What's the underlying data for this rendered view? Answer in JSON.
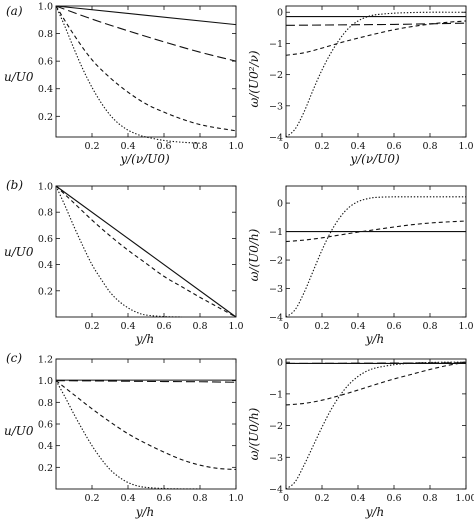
{
  "rows": [
    {
      "tag": "(a)",
      "left_xlabel": "y/(ν/U0)",
      "right_xlabel": "y/(ν/U0)",
      "left_ylabel": "u/U0",
      "right_ylabel": "ω/(U0²/ν)"
    },
    {
      "tag": "(b)",
      "left_xlabel": "y/h",
      "right_xlabel": "y/h",
      "left_ylabel": "u/U0",
      "right_ylabel": "ω/(U0/h)"
    },
    {
      "tag": "(c)",
      "left_xlabel": "y/h",
      "right_xlabel": "y/h",
      "left_ylabel": "u/U0",
      "right_ylabel": "ω/(U0/h)"
    }
  ],
  "chart_data": [
    {
      "id": "a-left",
      "type": "line",
      "xlim": [
        0,
        1
      ],
      "ylim": [
        0.05,
        1.0
      ],
      "xticks": [
        "0.2",
        "0.4",
        "0.6",
        "0.8",
        "1.0"
      ],
      "yticks": [
        "0.2",
        "0.4",
        "0.6",
        "0.8",
        "1.0"
      ],
      "series": [
        {
          "style": "solid",
          "x": [
            0,
            1
          ],
          "y": [
            1.0,
            0.865
          ]
        },
        {
          "style": "longdash",
          "x": [
            0,
            0.2,
            0.4,
            0.6,
            0.8,
            1.0
          ],
          "y": [
            1.0,
            0.905,
            0.82,
            0.74,
            0.665,
            0.6
          ]
        },
        {
          "style": "dashed",
          "x": [
            0,
            0.1,
            0.2,
            0.3,
            0.4,
            0.5,
            0.6,
            0.7,
            0.8,
            0.9,
            1.0
          ],
          "y": [
            1.0,
            0.79,
            0.61,
            0.48,
            0.375,
            0.29,
            0.23,
            0.18,
            0.14,
            0.115,
            0.095
          ]
        },
        {
          "style": "dotted",
          "x": [
            0,
            0.05,
            0.1,
            0.15,
            0.2,
            0.25,
            0.3,
            0.35,
            0.4,
            0.45,
            0.5,
            0.6,
            0.7,
            0.8
          ],
          "y": [
            1.0,
            0.85,
            0.69,
            0.54,
            0.41,
            0.3,
            0.21,
            0.145,
            0.1,
            0.07,
            0.05,
            0.025,
            0.012,
            0.005
          ]
        }
      ]
    },
    {
      "id": "a-right",
      "type": "line",
      "xlim": [
        0,
        1
      ],
      "ylim": [
        -4,
        0.2
      ],
      "xticks": [
        "0",
        "0.2",
        "0.4",
        "0.6",
        "0.8",
        "1.0"
      ],
      "yticks": [
        "−4",
        "−3",
        "−2",
        "−1",
        "0"
      ],
      "series": [
        {
          "style": "solid",
          "x": [
            0,
            1
          ],
          "y": [
            -0.14,
            -0.14
          ]
        },
        {
          "style": "longdash",
          "x": [
            0,
            0.2,
            0.4,
            0.6,
            0.8,
            1.0
          ],
          "y": [
            -0.42,
            -0.41,
            -0.4,
            -0.39,
            -0.37,
            -0.35
          ]
        },
        {
          "style": "dashed",
          "x": [
            0,
            0.1,
            0.2,
            0.3,
            0.4,
            0.5,
            0.6,
            0.7,
            0.8,
            0.9,
            1.0
          ],
          "y": [
            -1.38,
            -1.3,
            -1.15,
            -0.98,
            -0.83,
            -0.69,
            -0.56,
            -0.46,
            -0.38,
            -0.32,
            -0.28
          ]
        },
        {
          "style": "dotted",
          "x": [
            0,
            0.05,
            0.1,
            0.15,
            0.2,
            0.25,
            0.3,
            0.35,
            0.4,
            0.45,
            0.5,
            0.6,
            0.7,
            0.8,
            0.9,
            1.0
          ],
          "y": [
            -4.0,
            -3.75,
            -3.2,
            -2.5,
            -1.85,
            -1.3,
            -0.85,
            -0.5,
            -0.28,
            -0.15,
            -0.08,
            -0.03,
            -0.01,
            0.0,
            0.0,
            0.0
          ]
        }
      ]
    },
    {
      "id": "b-left",
      "type": "line",
      "xlim": [
        0,
        1
      ],
      "ylim": [
        0,
        1.0
      ],
      "xticks": [
        "0.2",
        "0.4",
        "0.6",
        "0.8",
        "1.0"
      ],
      "yticks": [
        "0.2",
        "0.4",
        "0.6",
        "0.8",
        "1.0"
      ],
      "series": [
        {
          "style": "solid",
          "x": [
            0,
            1
          ],
          "y": [
            1.0,
            0.0
          ]
        },
        {
          "style": "dashed",
          "x": [
            0,
            0.1,
            0.2,
            0.3,
            0.4,
            0.5,
            0.6,
            0.7,
            0.8,
            0.9,
            1.0
          ],
          "y": [
            1.0,
            0.87,
            0.74,
            0.62,
            0.51,
            0.41,
            0.31,
            0.23,
            0.15,
            0.075,
            0.0
          ]
        },
        {
          "style": "dotted",
          "x": [
            0,
            0.05,
            0.1,
            0.15,
            0.2,
            0.25,
            0.3,
            0.35,
            0.4,
            0.45,
            0.5,
            0.6,
            0.7
          ],
          "y": [
            1.0,
            0.85,
            0.69,
            0.54,
            0.4,
            0.29,
            0.19,
            0.12,
            0.07,
            0.035,
            0.015,
            0.003,
            0.0
          ]
        }
      ]
    },
    {
      "id": "b-right",
      "type": "line",
      "xlim": [
        0,
        1
      ],
      "ylim": [
        -4,
        0.6
      ],
      "xticks": [
        "0",
        "0.2",
        "0.4",
        "0.6",
        "0.8",
        "1.0"
      ],
      "yticks": [
        "−4",
        "−3",
        "−2",
        "−1",
        "0"
      ],
      "series": [
        {
          "style": "solid",
          "x": [
            0,
            1
          ],
          "y": [
            -1.0,
            -1.0
          ]
        },
        {
          "style": "dashed",
          "x": [
            0,
            0.1,
            0.2,
            0.3,
            0.4,
            0.5,
            0.6,
            0.7,
            0.8,
            0.9,
            1.0
          ],
          "y": [
            -1.35,
            -1.3,
            -1.22,
            -1.12,
            -1.02,
            -0.93,
            -0.84,
            -0.76,
            -0.7,
            -0.66,
            -0.63
          ]
        },
        {
          "style": "dotted",
          "x": [
            0,
            0.05,
            0.1,
            0.15,
            0.2,
            0.25,
            0.3,
            0.35,
            0.4,
            0.45,
            0.5,
            0.6,
            0.7,
            0.8,
            0.9,
            1.0
          ],
          "y": [
            -4.0,
            -3.75,
            -3.15,
            -2.4,
            -1.65,
            -1.0,
            -0.5,
            -0.15,
            0.05,
            0.15,
            0.2,
            0.22,
            0.22,
            0.22,
            0.22,
            0.22
          ]
        }
      ]
    },
    {
      "id": "c-left",
      "type": "line",
      "xlim": [
        0,
        1
      ],
      "ylim": [
        0,
        1.2
      ],
      "xticks": [
        "0.2",
        "0.4",
        "0.6",
        "0.8",
        "1.0"
      ],
      "yticks": [
        "0.2",
        "0.4",
        "0.6",
        "0.8",
        "1.0",
        "1.2"
      ],
      "series": [
        {
          "style": "solid",
          "x": [
            0,
            1
          ],
          "y": [
            1.005,
            1.005
          ]
        },
        {
          "style": "longdash",
          "x": [
            0,
            0.2,
            0.4,
            0.6,
            0.8,
            1.0
          ],
          "y": [
            1.0,
            0.998,
            0.995,
            0.992,
            0.99,
            0.985
          ]
        },
        {
          "style": "dashed",
          "x": [
            0,
            0.1,
            0.2,
            0.3,
            0.4,
            0.5,
            0.6,
            0.7,
            0.8,
            0.9,
            1.0
          ],
          "y": [
            1.0,
            0.87,
            0.74,
            0.62,
            0.51,
            0.42,
            0.34,
            0.27,
            0.22,
            0.19,
            0.18
          ]
        },
        {
          "style": "dotted",
          "x": [
            0,
            0.05,
            0.1,
            0.15,
            0.2,
            0.25,
            0.3,
            0.35,
            0.4,
            0.45,
            0.5,
            0.6,
            0.7,
            0.8
          ],
          "y": [
            1.0,
            0.85,
            0.69,
            0.54,
            0.4,
            0.28,
            0.18,
            0.11,
            0.06,
            0.03,
            0.015,
            0.004,
            0.001,
            0.0
          ]
        }
      ]
    },
    {
      "id": "c-right",
      "type": "line",
      "xlim": [
        0,
        1
      ],
      "ylim": [
        -4,
        0.1
      ],
      "xticks": [
        "0",
        "0.2",
        "0.4",
        "0.6",
        "0.8",
        "1.00"
      ],
      "yticks": [
        "−4",
        "−3",
        "−2",
        "−1",
        "0"
      ],
      "series": [
        {
          "style": "solid",
          "x": [
            0,
            1
          ],
          "y": [
            -0.04,
            -0.04
          ]
        },
        {
          "style": "longdash",
          "x": [
            0,
            0.5,
            1.0
          ],
          "y": [
            -0.04,
            -0.03,
            -0.02
          ]
        },
        {
          "style": "dashed",
          "x": [
            0,
            0.1,
            0.2,
            0.3,
            0.4,
            0.5,
            0.6,
            0.7,
            0.8,
            0.9,
            1.0
          ],
          "y": [
            -1.35,
            -1.3,
            -1.2,
            -1.05,
            -0.88,
            -0.7,
            -0.53,
            -0.38,
            -0.23,
            -0.1,
            0.0
          ]
        },
        {
          "style": "dotted",
          "x": [
            0,
            0.05,
            0.1,
            0.15,
            0.2,
            0.25,
            0.3,
            0.35,
            0.4,
            0.45,
            0.5,
            0.6,
            0.7,
            0.8,
            0.9,
            1.0
          ],
          "y": [
            -4.0,
            -3.78,
            -3.25,
            -2.65,
            -2.05,
            -1.5,
            -1.05,
            -0.7,
            -0.45,
            -0.28,
            -0.18,
            -0.08,
            -0.03,
            -0.01,
            0.0,
            0.0
          ]
        }
      ]
    }
  ]
}
